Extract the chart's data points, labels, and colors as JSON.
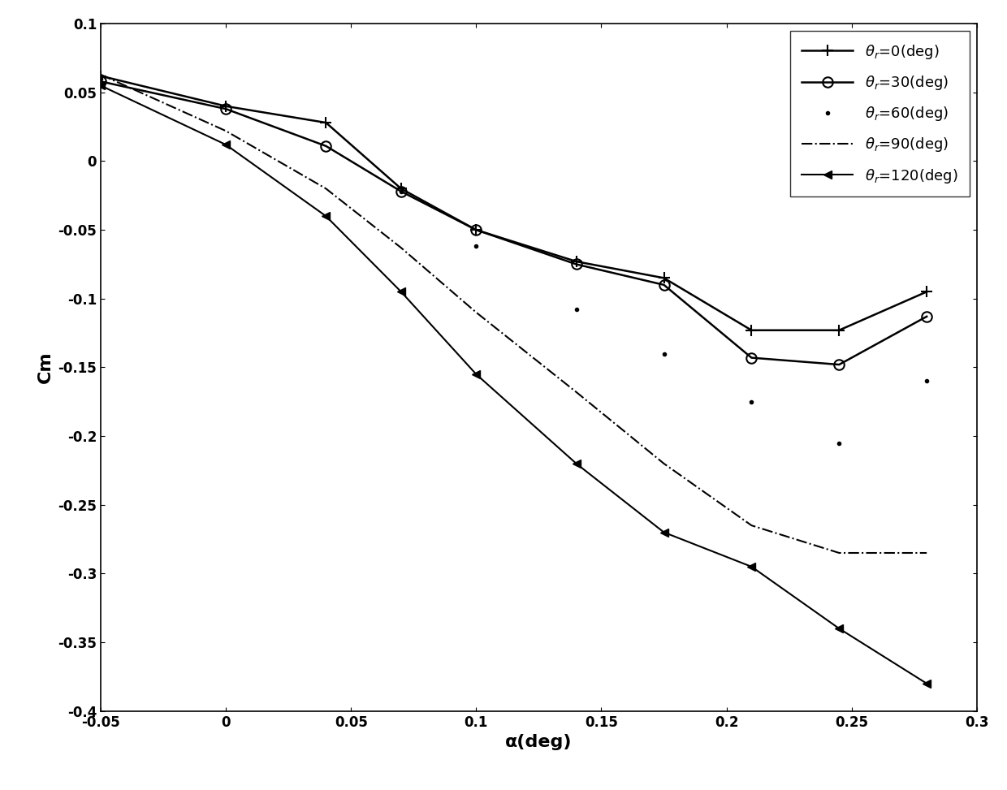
{
  "title": "",
  "xlabel": "α(deg)",
  "ylabel": "Cm",
  "xlim": [
    -0.05,
    0.3
  ],
  "ylim": [
    -0.4,
    0.1
  ],
  "xticks": [
    -0.05,
    0,
    0.05,
    0.1,
    0.15,
    0.2,
    0.25,
    0.3
  ],
  "yticks": [
    -0.4,
    -0.35,
    -0.3,
    -0.25,
    -0.2,
    -0.15,
    -0.1,
    -0.05,
    0,
    0.05,
    0.1
  ],
  "series": [
    {
      "label": "$\\theta_r$=0(deg)",
      "x": [
        -0.05,
        0.0,
        0.04,
        0.07,
        0.1,
        0.14,
        0.175,
        0.21,
        0.245,
        0.28
      ],
      "y": [
        0.062,
        0.04,
        0.028,
        -0.02,
        -0.05,
        -0.073,
        -0.085,
        -0.123,
        -0.123,
        -0.095
      ],
      "linestyle": "-",
      "marker": "+",
      "color": "black",
      "linewidth": 1.8,
      "markersize": 10,
      "markeredgewidth": 1.5,
      "fillstyle": "none"
    },
    {
      "label": "$\\theta_r$=30(deg)",
      "x": [
        -0.05,
        0.0,
        0.04,
        0.07,
        0.1,
        0.14,
        0.175,
        0.21,
        0.245,
        0.28
      ],
      "y": [
        0.058,
        0.038,
        0.011,
        -0.022,
        -0.05,
        -0.075,
        -0.09,
        -0.143,
        -0.148,
        -0.113
      ],
      "linestyle": "-",
      "marker": "o",
      "color": "black",
      "linewidth": 1.8,
      "markersize": 9,
      "markeredgewidth": 1.5,
      "fillstyle": "none"
    },
    {
      "label": "$\\theta_r$=60(deg)",
      "x": [
        -0.05,
        0.07,
        0.1,
        0.14,
        0.175,
        0.21,
        0.245,
        0.28
      ],
      "y": [
        0.06,
        -0.022,
        -0.062,
        -0.108,
        -0.14,
        -0.175,
        -0.205,
        -0.16
      ],
      "linestyle": "None",
      "marker": ".",
      "color": "black",
      "linewidth": 1.0,
      "markersize": 6,
      "markeredgewidth": 1.0,
      "fillstyle": "full"
    },
    {
      "label": "$\\theta_r$=90(deg)",
      "x": [
        -0.05,
        0.0,
        0.04,
        0.07,
        0.1,
        0.14,
        0.175,
        0.21,
        0.245,
        0.28
      ],
      "y": [
        0.063,
        0.022,
        -0.02,
        -0.063,
        -0.11,
        -0.168,
        -0.22,
        -0.265,
        -0.285,
        -0.285
      ],
      "linestyle": "-.",
      "marker": "None",
      "color": "black",
      "linewidth": 1.5,
      "markersize": 6,
      "markeredgewidth": 1.0,
      "fillstyle": "none"
    },
    {
      "label": "$\\theta_r$=120(deg)",
      "x": [
        -0.05,
        0.0,
        0.04,
        0.07,
        0.1,
        0.14,
        0.175,
        0.21,
        0.245,
        0.28
      ],
      "y": [
        0.055,
        0.012,
        -0.04,
        -0.095,
        -0.155,
        -0.22,
        -0.27,
        -0.295,
        -0.34,
        -0.38
      ],
      "linestyle": "-",
      "marker": "<",
      "color": "black",
      "linewidth": 1.5,
      "markersize": 7,
      "markeredgewidth": 1.0,
      "fillstyle": "full"
    }
  ],
  "legend_loc": "upper right",
  "background_color": "#ffffff",
  "figsize": [
    12.4,
    9.73
  ],
  "dpi": 100
}
